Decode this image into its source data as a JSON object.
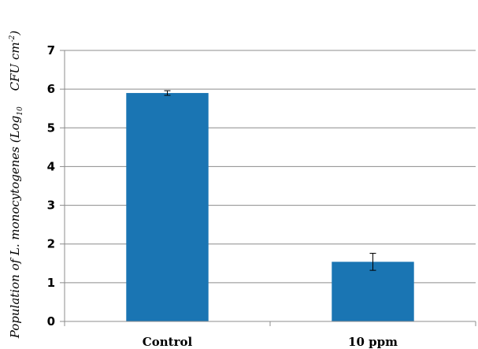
{
  "chart_data": {
    "type": "bar",
    "categories": [
      "Control",
      "10 ppm"
    ],
    "values": [
      5.9,
      1.54
    ],
    "error": [
      0.06,
      0.22
    ],
    "ylabel": {
      "main": "Population of L. monocytogenes (Log",
      "sub": "10",
      "unit": "CFU cm",
      "sup": "-2",
      "close": ")"
    },
    "ylim": [
      0,
      7
    ],
    "yticks": [
      "0",
      "1",
      "2",
      "3",
      "4",
      "5",
      "6",
      "7"
    ],
    "grid": true,
    "bar_color": "#1a75b3",
    "legend": "none"
  }
}
